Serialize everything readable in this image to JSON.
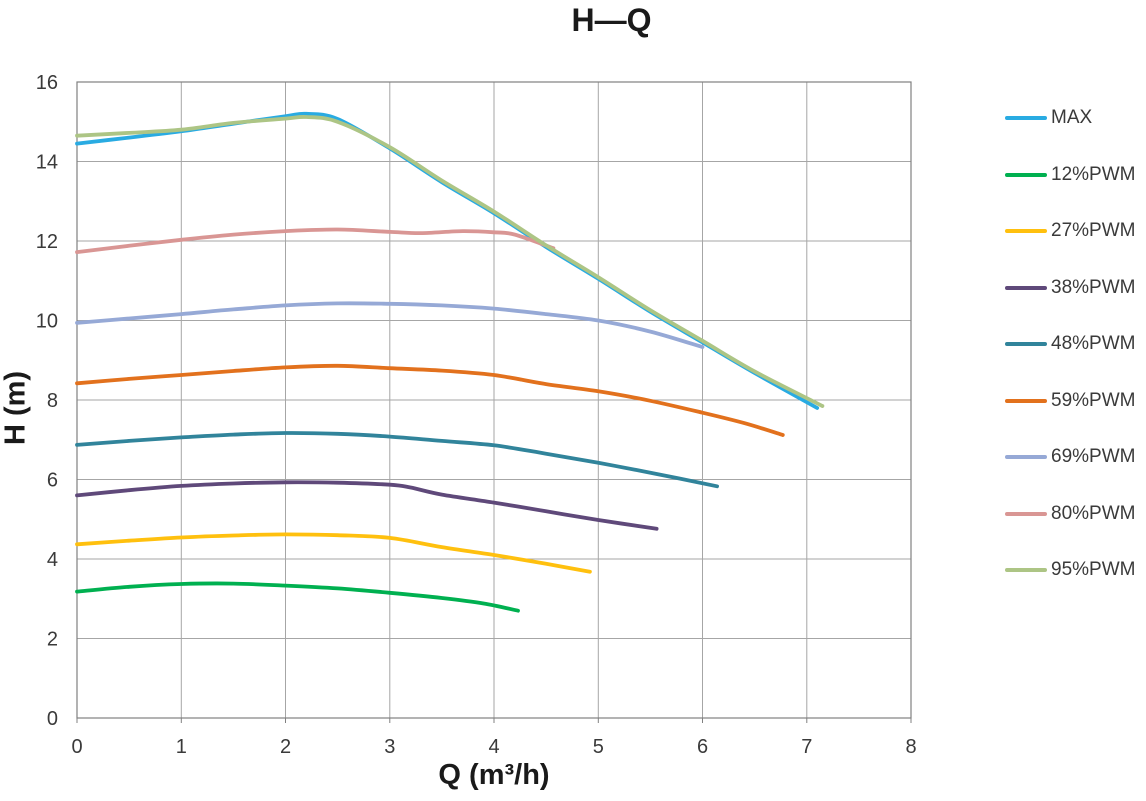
{
  "title": "H—Q",
  "axes": {
    "x": {
      "label": "Q (m³/h)"
    },
    "y": {
      "label": "H (m)"
    }
  },
  "colors": {
    "background": "#FFFFFF",
    "grid": "#A6A6A6",
    "frame": "#808080",
    "tick_text": "#3A3A3A",
    "label_text": "#1A1A1A"
  },
  "chart_data": {
    "type": "line",
    "title": "H—Q",
    "xlabel": "Q (m³/h)",
    "ylabel": "H (m)",
    "xlim": [
      0,
      8
    ],
    "ylim": [
      0,
      16
    ],
    "grid": true,
    "legend_position": "right",
    "x_ticks": [
      "0",
      "1",
      "2",
      "3",
      "4",
      "5",
      "6",
      "7",
      "8"
    ],
    "y_ticks": [
      "0",
      "2",
      "4",
      "6",
      "8",
      "10",
      "12",
      "14",
      "16"
    ],
    "series": [
      {
        "name": "MAX",
        "color": "#29ABE2",
        "points": [
          [
            0,
            14.45
          ],
          [
            0.5,
            14.6
          ],
          [
            1,
            14.76
          ],
          [
            1.5,
            14.95
          ],
          [
            2,
            15.14
          ],
          [
            2.2,
            15.2
          ],
          [
            2.5,
            15.07
          ],
          [
            3,
            14.33
          ],
          [
            3.5,
            13.48
          ],
          [
            4,
            12.7
          ],
          [
            4.5,
            11.85
          ],
          [
            5,
            11.05
          ],
          [
            5.5,
            10.22
          ],
          [
            6,
            9.45
          ],
          [
            6.5,
            8.68
          ],
          [
            7.1,
            7.8
          ]
        ]
      },
      {
        "name": "12%PWM",
        "color": "#00B050",
        "points": [
          [
            0,
            3.18
          ],
          [
            0.5,
            3.3
          ],
          [
            1,
            3.37
          ],
          [
            1.5,
            3.38
          ],
          [
            2,
            3.33
          ],
          [
            2.5,
            3.26
          ],
          [
            3,
            3.15
          ],
          [
            3.5,
            3.02
          ],
          [
            3.9,
            2.88
          ],
          [
            4.23,
            2.7
          ]
        ]
      },
      {
        "name": "27%PWM",
        "color": "#FFC00E",
        "points": [
          [
            0,
            4.37
          ],
          [
            0.5,
            4.46
          ],
          [
            1,
            4.54
          ],
          [
            1.5,
            4.59
          ],
          [
            2,
            4.62
          ],
          [
            2.5,
            4.6
          ],
          [
            3,
            4.53
          ],
          [
            3.5,
            4.3
          ],
          [
            4,
            4.1
          ],
          [
            4.5,
            3.88
          ],
          [
            4.92,
            3.68
          ]
        ]
      },
      {
        "name": "38%PWM",
        "color": "#5F497A",
        "points": [
          [
            0,
            5.6
          ],
          [
            0.5,
            5.73
          ],
          [
            1,
            5.84
          ],
          [
            1.5,
            5.9
          ],
          [
            2,
            5.93
          ],
          [
            2.5,
            5.92
          ],
          [
            3,
            5.87
          ],
          [
            3.2,
            5.8
          ],
          [
            3.5,
            5.62
          ],
          [
            4,
            5.42
          ],
          [
            4.5,
            5.2
          ],
          [
            5,
            4.98
          ],
          [
            5.56,
            4.76
          ]
        ]
      },
      {
        "name": "48%PWM",
        "color": "#31849B",
        "points": [
          [
            0,
            6.87
          ],
          [
            0.5,
            6.97
          ],
          [
            1,
            7.06
          ],
          [
            1.5,
            7.13
          ],
          [
            2,
            7.17
          ],
          [
            2.5,
            7.15
          ],
          [
            3,
            7.08
          ],
          [
            3.5,
            6.97
          ],
          [
            4,
            6.86
          ],
          [
            4.5,
            6.65
          ],
          [
            5,
            6.42
          ],
          [
            5.5,
            6.17
          ],
          [
            6.14,
            5.83
          ]
        ]
      },
      {
        "name": "59%PWM",
        "color": "#E2711D",
        "points": [
          [
            0,
            8.42
          ],
          [
            0.5,
            8.53
          ],
          [
            1,
            8.63
          ],
          [
            1.5,
            8.73
          ],
          [
            2,
            8.82
          ],
          [
            2.5,
            8.86
          ],
          [
            3,
            8.8
          ],
          [
            3.5,
            8.74
          ],
          [
            4,
            8.63
          ],
          [
            4.5,
            8.4
          ],
          [
            5,
            8.22
          ],
          [
            5.5,
            7.98
          ],
          [
            6,
            7.68
          ],
          [
            6.4,
            7.42
          ],
          [
            6.77,
            7.12
          ]
        ]
      },
      {
        "name": "69%PWM",
        "color": "#96A9D6",
        "points": [
          [
            0,
            9.94
          ],
          [
            0.5,
            10.05
          ],
          [
            1,
            10.16
          ],
          [
            1.5,
            10.28
          ],
          [
            2,
            10.38
          ],
          [
            2.5,
            10.43
          ],
          [
            3,
            10.42
          ],
          [
            3.5,
            10.38
          ],
          [
            4,
            10.3
          ],
          [
            4.5,
            10.16
          ],
          [
            5,
            10.0
          ],
          [
            5.5,
            9.72
          ],
          [
            6,
            9.33
          ]
        ]
      },
      {
        "name": "80%PWM",
        "color": "#D99694",
        "points": [
          [
            0,
            11.72
          ],
          [
            0.5,
            11.88
          ],
          [
            1,
            12.03
          ],
          [
            1.5,
            12.16
          ],
          [
            2,
            12.25
          ],
          [
            2.5,
            12.29
          ],
          [
            3,
            12.23
          ],
          [
            3.3,
            12.2
          ],
          [
            3.7,
            12.25
          ],
          [
            4,
            12.22
          ],
          [
            4.2,
            12.16
          ],
          [
            4.57,
            11.82
          ]
        ]
      },
      {
        "name": "95%PWM",
        "color": "#ADC585",
        "points": [
          [
            0,
            14.65
          ],
          [
            0.5,
            14.72
          ],
          [
            1,
            14.8
          ],
          [
            1.5,
            14.97
          ],
          [
            2,
            15.08
          ],
          [
            2.2,
            15.12
          ],
          [
            2.5,
            15.0
          ],
          [
            3,
            14.36
          ],
          [
            3.5,
            13.52
          ],
          [
            4,
            12.74
          ],
          [
            4.5,
            11.89
          ],
          [
            5,
            11.09
          ],
          [
            5.5,
            10.26
          ],
          [
            6,
            9.49
          ],
          [
            6.5,
            8.72
          ],
          [
            7.15,
            7.85
          ]
        ]
      }
    ]
  }
}
